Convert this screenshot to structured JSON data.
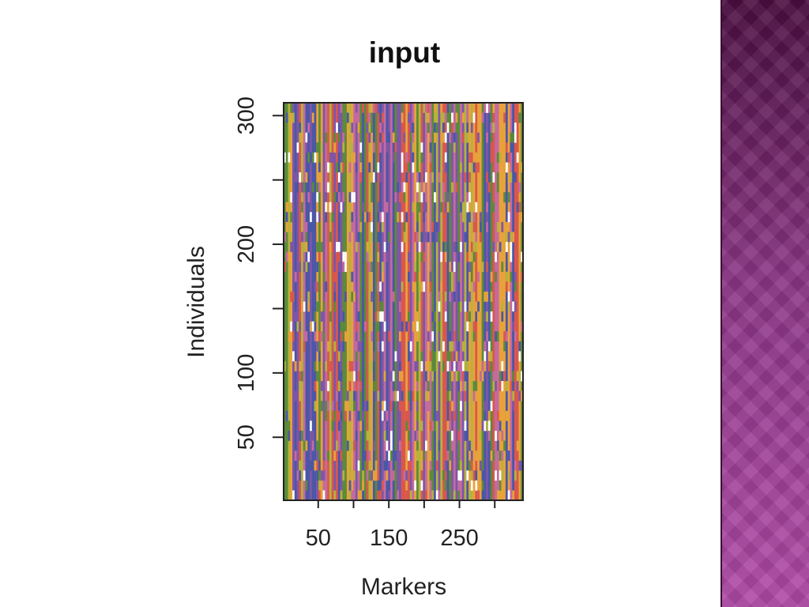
{
  "slide": {
    "sidebar_colors": [
      "#4a0e40",
      "#8a3584",
      "#b04aa7"
    ]
  },
  "chart_data": {
    "type": "heatmap",
    "title": "input",
    "xlabel": "Markers",
    "ylabel": "Individuals",
    "x_ticks": [
      50,
      150,
      250
    ],
    "x_minor_ticks": [
      100,
      200,
      300
    ],
    "y_ticks": [
      50,
      100,
      200,
      300
    ],
    "y_minor_ticks": [
      150,
      250
    ],
    "xlim": [
      1,
      340
    ],
    "ylim": [
      1,
      310
    ],
    "grid": false,
    "legend": "none",
    "palette": [
      "#7e56a6",
      "#b5b23d",
      "#e8a23a",
      "#d9574d",
      "#5b8a3a",
      "#4a57a6",
      "#c46aa0",
      "#ffffff"
    ]
  }
}
